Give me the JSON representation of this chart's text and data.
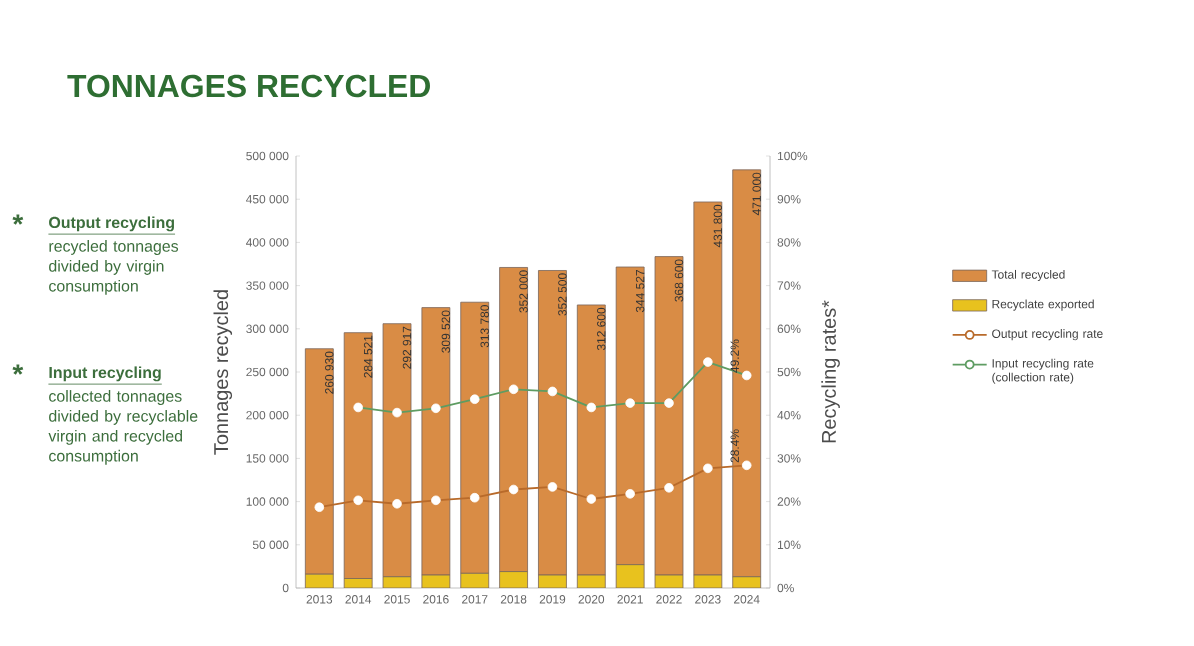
{
  "chart_data": {
    "type": "bar",
    "title": "TONNAGES RECYCLED",
    "ylabel": "Tonnages recycled",
    "y2label": "Recycling rates*",
    "stacked": true,
    "legend": "right",
    "marker": "circle",
    "categories": [
      "2013",
      "2014",
      "2015",
      "2016",
      "2017",
      "2018",
      "2019",
      "2020",
      "2021",
      "2022",
      "2023",
      "2024"
    ],
    "series": [
      {
        "name": "Recyclate exported",
        "type": "bar",
        "color": "#e8c21e",
        "values": [
          16000,
          11000,
          13000,
          15000,
          17000,
          19000,
          15000,
          15000,
          27000,
          15000,
          15000,
          13000
        ]
      },
      {
        "name": "Total recycled",
        "type": "bar",
        "color": "#d98c45",
        "values": [
          260930,
          284521,
          292917,
          309520,
          313780,
          352000,
          352500,
          312600,
          344527,
          368600,
          431800,
          471000
        ],
        "value_labels": [
          "260 930",
          "284 521",
          "292 917",
          "309 520",
          "313 780",
          "352 000",
          "352 500",
          "312 600",
          "344 527",
          "368 600",
          "431 800",
          "471 000"
        ]
      },
      {
        "name": "Output recycling rate",
        "type": "line",
        "axis": "y2",
        "color": "#b86a2a",
        "values": [
          18.7,
          20.3,
          19.5,
          20.3,
          20.9,
          22.8,
          23.4,
          20.6,
          21.8,
          23.2,
          27.7,
          28.4
        ],
        "value_labels": [
          null,
          null,
          null,
          null,
          null,
          null,
          null,
          null,
          null,
          null,
          null,
          "28.4%"
        ]
      },
      {
        "name": "Input recycling rate (collection rate)",
        "type": "line",
        "axis": "y2",
        "color": "#5e9c62",
        "values": [
          null,
          41.8,
          40.6,
          41.6,
          43.7,
          46.0,
          45.5,
          41.8,
          42.8,
          42.8,
          52.3,
          49.2
        ],
        "value_labels": [
          null,
          null,
          null,
          null,
          null,
          null,
          null,
          null,
          null,
          null,
          null,
          "49.2%"
        ]
      }
    ],
    "ylim": [
      0,
      500000
    ],
    "yticks": [
      {
        "value": 0,
        "label": "0"
      },
      {
        "value": 50000,
        "label": "50 000"
      },
      {
        "value": 100000,
        "label": "100 000"
      },
      {
        "value": 150000,
        "label": "150 000"
      },
      {
        "value": 200000,
        "label": "200 000"
      },
      {
        "value": 250000,
        "label": "250 000"
      },
      {
        "value": 300000,
        "label": "300 000"
      },
      {
        "value": 350000,
        "label": "350 000"
      },
      {
        "value": 400000,
        "label": "400 000"
      },
      {
        "value": 450000,
        "label": "450 000"
      },
      {
        "value": 500000,
        "label": "500 000"
      }
    ],
    "y2lim": [
      0,
      100
    ],
    "y2ticks": [
      {
        "value": 0,
        "label": "0%"
      },
      {
        "value": 10,
        "label": "10%"
      },
      {
        "value": 20,
        "label": "20%"
      },
      {
        "value": 30,
        "label": "30%"
      },
      {
        "value": 40,
        "label": "40%"
      },
      {
        "value": 50,
        "label": "50%"
      },
      {
        "value": 60,
        "label": "60%"
      },
      {
        "value": 70,
        "label": "70%"
      },
      {
        "value": 80,
        "label": "80%"
      },
      {
        "value": 90,
        "label": "90%"
      },
      {
        "value": 100,
        "label": "100%"
      }
    ],
    "annotations": [
      "*",
      "Output recycling",
      "recycled tonnages divided by virgin consumption",
      "*",
      "Input recycling",
      "collected tonnages divided by recyclable virgin and recycled consumption"
    ]
  }
}
